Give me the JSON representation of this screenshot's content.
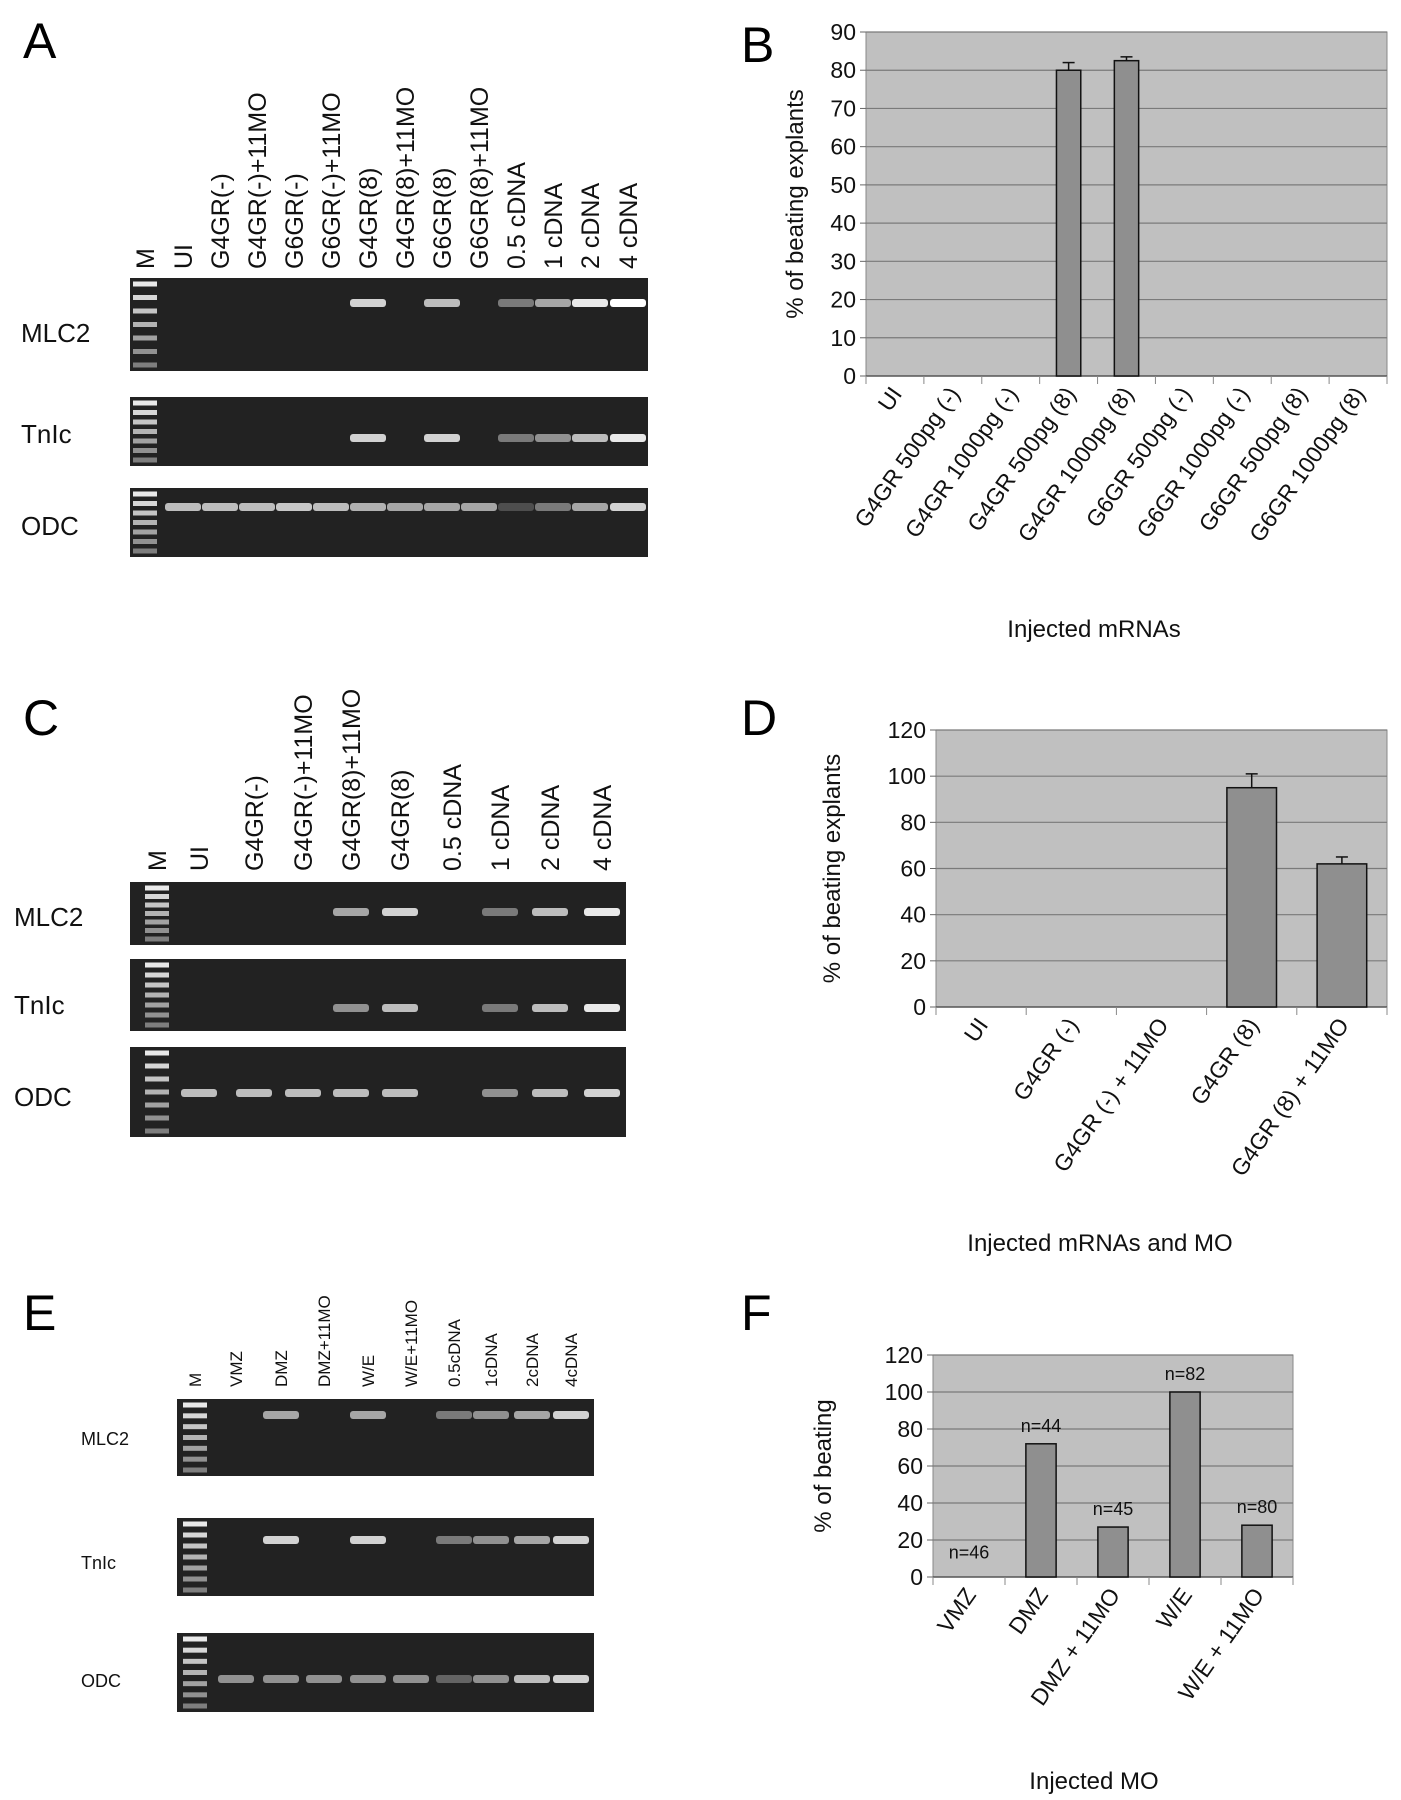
{
  "panels": {
    "A": {
      "label": "A"
    },
    "B": {
      "label": "B"
    },
    "C": {
      "label": "C"
    },
    "D": {
      "label": "D"
    },
    "E": {
      "label": "E"
    },
    "F": {
      "label": "F"
    }
  },
  "gels": [
    {
      "panel": "A",
      "lanes": [
        "M",
        "UI",
        "G4GR(-)",
        "G4GR(-)+11MO",
        "G6GR(-)",
        "G6GR(-)+11MO",
        "G4GR(8)",
        "G4GR(8)+11MO",
        "G6GR(8)",
        "G6GR(8)+11MO",
        "0.5 cDNA",
        "1 cDNA",
        "2 cDNA",
        "4 cDNA"
      ],
      "rows": [
        {
          "label": "MLC2",
          "band_intensity": [
            0,
            0,
            0,
            0,
            0,
            0.8,
            0,
            0.7,
            0,
            0.4,
            0.6,
            0.9,
            1
          ]
        },
        {
          "label": "TnIc",
          "band_intensity": [
            0,
            0,
            0,
            0,
            0,
            0.8,
            0,
            0.8,
            0,
            0.4,
            0.5,
            0.7,
            0.9
          ]
        },
        {
          "label": "ODC",
          "band_intensity": [
            0.7,
            0.7,
            0.7,
            0.75,
            0.7,
            0.65,
            0.6,
            0.6,
            0.6,
            0.2,
            0.4,
            0.6,
            0.8
          ]
        }
      ]
    },
    {
      "panel": "C",
      "lanes": [
        "M",
        "UI",
        "G4GR(-)",
        "G4GR(-)+11MO",
        "G4GR(8)+11MO",
        "G4GR(8)",
        "0.5 cDNA",
        "1 cDNA",
        "2 cDNA",
        "4 cDNA"
      ],
      "rows": [
        {
          "label": "MLC2",
          "band_intensity": [
            0,
            0,
            0,
            0.6,
            0.8,
            0,
            0.4,
            0.7,
            0.9
          ]
        },
        {
          "label": "TnIc",
          "band_intensity": [
            0,
            0,
            0,
            0.5,
            0.7,
            0,
            0.4,
            0.7,
            0.9
          ]
        },
        {
          "label": "ODC",
          "band_intensity": [
            0.7,
            0.7,
            0.7,
            0.7,
            0.7,
            0,
            0.5,
            0.7,
            0.8
          ]
        }
      ]
    },
    {
      "panel": "E",
      "lanes": [
        "M",
        "VMZ",
        "DMZ",
        "DMZ+11MO",
        "W/E",
        "W/E+11MO",
        "0.5cDNA",
        "1cDNA",
        "2cDNA",
        "4cDNA"
      ],
      "rows": [
        {
          "label": "MLC2",
          "band_intensity": [
            0,
            0.6,
            0,
            0.6,
            0,
            0.4,
            0.5,
            0.6,
            0.8
          ]
        },
        {
          "label": "TnIc",
          "band_intensity": [
            0,
            0.8,
            0,
            0.8,
            0,
            0.4,
            0.5,
            0.6,
            0.8
          ]
        },
        {
          "label": "ODC",
          "band_intensity": [
            0.5,
            0.5,
            0.5,
            0.5,
            0.5,
            0.3,
            0.5,
            0.7,
            0.8
          ]
        }
      ]
    }
  ],
  "chart_data": [
    {
      "panel": "B",
      "type": "bar",
      "categories": [
        "UI",
        "G4GR 500pg (-)",
        "G4GR 1000pg (-)",
        "G4GR 500pg (8)",
        "G4GR 1000pg (8)",
        "G6GR 500pg (-)",
        "G6GR 1000pg (-)",
        "G6GR 500pg (8)",
        "G6GR 1000pg (8)"
      ],
      "values": [
        0,
        0,
        0,
        80,
        82.5,
        0,
        0,
        0,
        0
      ],
      "errors": [
        0,
        0,
        0,
        2,
        1,
        0,
        0,
        0,
        0
      ],
      "xlabel": "Injected mRNAs",
      "ylabel": "% of beating explants",
      "ylim": [
        0,
        90
      ],
      "yticks": [
        0,
        10,
        20,
        30,
        40,
        50,
        60,
        70,
        80,
        90
      ],
      "grid": true,
      "colors": {
        "plot_bg": "#c0c0c0",
        "bar": "#8f8f8f",
        "grid": "#7a7a7a"
      }
    },
    {
      "panel": "D",
      "type": "bar",
      "categories": [
        "UI",
        "G4GR (-)",
        "G4GR (-) + 11MO",
        "G4GR (8)",
        "G4GR (8) + 11MO"
      ],
      "values": [
        0,
        0,
        0,
        95,
        62
      ],
      "errors": [
        0,
        0,
        0,
        6,
        3
      ],
      "xlabel": "Injected mRNAs and MO",
      "ylabel": "% of beating explants",
      "ylim": [
        0,
        120
      ],
      "yticks": [
        0,
        20,
        40,
        60,
        80,
        100,
        120
      ],
      "grid": true,
      "colors": {
        "plot_bg": "#c0c0c0",
        "bar": "#8f8f8f",
        "grid": "#7a7a7a"
      }
    },
    {
      "panel": "F",
      "type": "bar",
      "categories": [
        "VMZ",
        "DMZ",
        "DMZ + 11MO",
        "W/E",
        "W/E + 11MO"
      ],
      "values": [
        0,
        72,
        27,
        100,
        28
      ],
      "annotations": [
        "n=46",
        "n=44",
        "n=45",
        "n=82",
        "n=80"
      ],
      "xlabel": "Injected MO",
      "ylabel": "% of beating",
      "ylim": [
        0,
        120
      ],
      "yticks": [
        0,
        20,
        40,
        60,
        80,
        100,
        120
      ],
      "grid": true,
      "colors": {
        "plot_bg": "#c0c0c0",
        "bar": "#8f8f8f",
        "grid": "#7a7a7a"
      }
    }
  ]
}
